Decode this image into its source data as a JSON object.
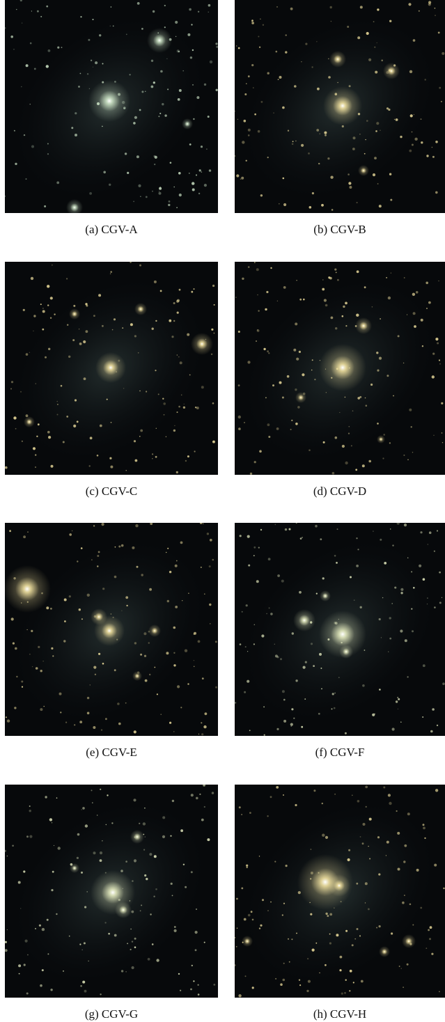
{
  "figure": {
    "panels": [
      {
        "caption": "(a) CGV-A"
      },
      {
        "caption": "(b) CGV-B"
      },
      {
        "caption": "(c) CGV-C"
      },
      {
        "caption": "(d) CGV-D"
      },
      {
        "caption": "(e) CGV-E"
      },
      {
        "caption": "(f) CGV-F"
      },
      {
        "caption": "(g) CGV-G"
      },
      {
        "caption": "(h) CGV-H"
      }
    ]
  }
}
